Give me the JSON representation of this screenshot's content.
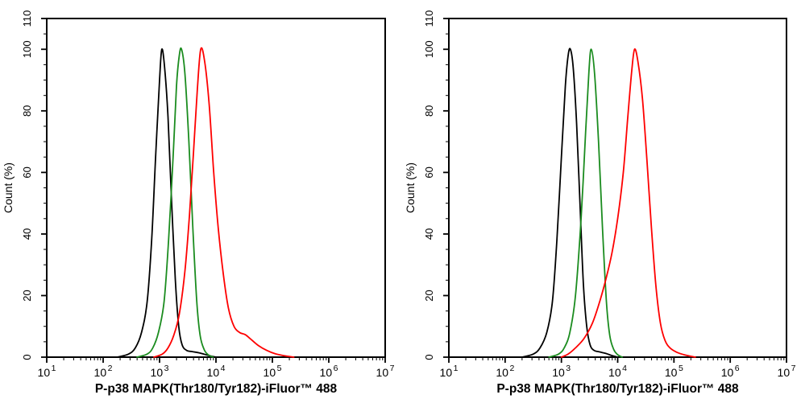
{
  "page": {
    "background": "#ffffff",
    "figure_kind": "flow-cytometry-overlay-histograms"
  },
  "chart_data": [
    {
      "type": "line",
      "subtype": "flow-cytometry-histogram",
      "panel": "left",
      "xlabel": "P-p38 MAPK(Thr180/Tyr182)-iFluor™ 488",
      "ylabel": "Count  (%)",
      "x_scale": "log10",
      "x_range_decades": [
        1,
        7
      ],
      "x_tick_label_base": "10",
      "x_tick_exponents": [
        1,
        2,
        3,
        4,
        5,
        6,
        7
      ],
      "ylim": [
        0,
        110
      ],
      "y_major_ticks": [
        0,
        20,
        40,
        60,
        80,
        100,
        110
      ],
      "y_minor_step": 5,
      "grid": false,
      "legend": "none",
      "axis_color": "#000000",
      "series": [
        {
          "name": "black",
          "color": "#000000",
          "peak_x": 1100,
          "peak_count_pct": 100,
          "points_log10x_pct": [
            [
              2.25,
              0
            ],
            [
              2.45,
              1
            ],
            [
              2.57,
              3
            ],
            [
              2.68,
              8
            ],
            [
              2.78,
              18
            ],
            [
              2.86,
              38
            ],
            [
              2.93,
              65
            ],
            [
              3.0,
              90
            ],
            [
              3.04,
              100
            ],
            [
              3.09,
              94
            ],
            [
              3.15,
              78
            ],
            [
              3.21,
              52
            ],
            [
              3.28,
              25
            ],
            [
              3.34,
              10
            ],
            [
              3.4,
              4
            ],
            [
              3.48,
              2.2
            ],
            [
              3.58,
              1.8
            ],
            [
              3.7,
              1.4
            ],
            [
              3.82,
              0.8
            ],
            [
              3.92,
              0.3
            ],
            [
              4.0,
              0
            ]
          ]
        },
        {
          "name": "green",
          "color": "#1b8c1f",
          "peak_x": 2400,
          "peak_count_pct": 100,
          "points_log10x_pct": [
            [
              2.6,
              0
            ],
            [
              2.78,
              1
            ],
            [
              2.88,
              3
            ],
            [
              2.98,
              8
            ],
            [
              3.08,
              18
            ],
            [
              3.16,
              38
            ],
            [
              3.24,
              65
            ],
            [
              3.3,
              88
            ],
            [
              3.35,
              98
            ],
            [
              3.39,
              100
            ],
            [
              3.45,
              92
            ],
            [
              3.52,
              70
            ],
            [
              3.59,
              42
            ],
            [
              3.66,
              18
            ],
            [
              3.72,
              7
            ],
            [
              3.79,
              2.5
            ],
            [
              3.86,
              0.8
            ],
            [
              3.95,
              0
            ]
          ]
        },
        {
          "name": "red",
          "color": "#fe0000",
          "peak_x": 5400,
          "peak_count_pct": 100,
          "points_log10x_pct": [
            [
              2.9,
              0
            ],
            [
              3.05,
              1
            ],
            [
              3.15,
              3
            ],
            [
              3.25,
              7
            ],
            [
              3.35,
              14
            ],
            [
              3.45,
              28
            ],
            [
              3.53,
              46
            ],
            [
              3.6,
              66
            ],
            [
              3.67,
              87
            ],
            [
              3.73,
              100
            ],
            [
              3.8,
              96
            ],
            [
              3.88,
              82
            ],
            [
              3.96,
              60
            ],
            [
              4.04,
              42
            ],
            [
              4.13,
              27
            ],
            [
              4.22,
              16
            ],
            [
              4.32,
              10
            ],
            [
              4.42,
              8
            ],
            [
              4.52,
              7.3
            ],
            [
              4.62,
              5.8
            ],
            [
              4.75,
              3.8
            ],
            [
              4.9,
              2.2
            ],
            [
              5.05,
              1.1
            ],
            [
              5.2,
              0.5
            ],
            [
              5.38,
              0
            ]
          ]
        }
      ]
    },
    {
      "type": "line",
      "subtype": "flow-cytometry-histogram",
      "panel": "right",
      "xlabel": "P-p38 MAPK(Thr180/Tyr182)-iFluor™ 488",
      "ylabel": "Count  (%)",
      "x_scale": "log10",
      "x_range_decades": [
        1,
        7
      ],
      "x_tick_label_base": "10",
      "x_tick_exponents": [
        1,
        2,
        3,
        4,
        5,
        6,
        7
      ],
      "ylim": [
        0,
        110
      ],
      "y_major_ticks": [
        0,
        20,
        40,
        60,
        80,
        100,
        110
      ],
      "y_minor_step": 5,
      "grid": false,
      "legend": "none",
      "axis_color": "#000000",
      "series": [
        {
          "name": "black",
          "color": "#000000",
          "peak_x": 1450,
          "peak_count_pct": 100,
          "points_log10x_pct": [
            [
              2.3,
              0
            ],
            [
              2.5,
              1
            ],
            [
              2.62,
              3
            ],
            [
              2.74,
              8
            ],
            [
              2.84,
              18
            ],
            [
              2.92,
              38
            ],
            [
              3.0,
              65
            ],
            [
              3.07,
              88
            ],
            [
              3.12,
              98
            ],
            [
              3.16,
              100
            ],
            [
              3.21,
              94
            ],
            [
              3.27,
              76
            ],
            [
              3.33,
              50
            ],
            [
              3.39,
              24
            ],
            [
              3.45,
              10
            ],
            [
              3.51,
              4
            ],
            [
              3.58,
              2.2
            ],
            [
              3.68,
              1.7
            ],
            [
              3.79,
              1.2
            ],
            [
              3.9,
              0.5
            ],
            [
              4.0,
              0
            ]
          ]
        },
        {
          "name": "green",
          "color": "#1b8c1f",
          "peak_x": 3300,
          "peak_count_pct": 100,
          "points_log10x_pct": [
            [
              2.78,
              0
            ],
            [
              2.95,
              1
            ],
            [
              3.05,
              3
            ],
            [
              3.15,
              8
            ],
            [
              3.25,
              20
            ],
            [
              3.35,
              45
            ],
            [
              3.43,
              73
            ],
            [
              3.49,
              93
            ],
            [
              3.53,
              100
            ],
            [
              3.59,
              92
            ],
            [
              3.66,
              70
            ],
            [
              3.73,
              42
            ],
            [
              3.8,
              18
            ],
            [
              3.86,
              7
            ],
            [
              3.93,
              2.5
            ],
            [
              4.0,
              0.8
            ],
            [
              4.08,
              0
            ]
          ]
        },
        {
          "name": "red",
          "color": "#fe0000",
          "peak_x": 20000,
          "peak_count_pct": 100,
          "points_log10x_pct": [
            [
              3.0,
              0
            ],
            [
              3.12,
              1
            ],
            [
              3.25,
              3
            ],
            [
              3.4,
              6
            ],
            [
              3.55,
              11
            ],
            [
              3.68,
              18
            ],
            [
              3.8,
              26
            ],
            [
              3.9,
              34
            ],
            [
              4.0,
              45
            ],
            [
              4.1,
              60
            ],
            [
              4.18,
              78
            ],
            [
              4.25,
              93
            ],
            [
              4.3,
              100
            ],
            [
              4.36,
              96
            ],
            [
              4.44,
              84
            ],
            [
              4.52,
              64
            ],
            [
              4.6,
              42
            ],
            [
              4.68,
              23
            ],
            [
              4.76,
              11
            ],
            [
              4.84,
              5.5
            ],
            [
              4.93,
              3
            ],
            [
              5.05,
              1.6
            ],
            [
              5.2,
              0.7
            ],
            [
              5.38,
              0
            ]
          ]
        }
      ]
    }
  ]
}
